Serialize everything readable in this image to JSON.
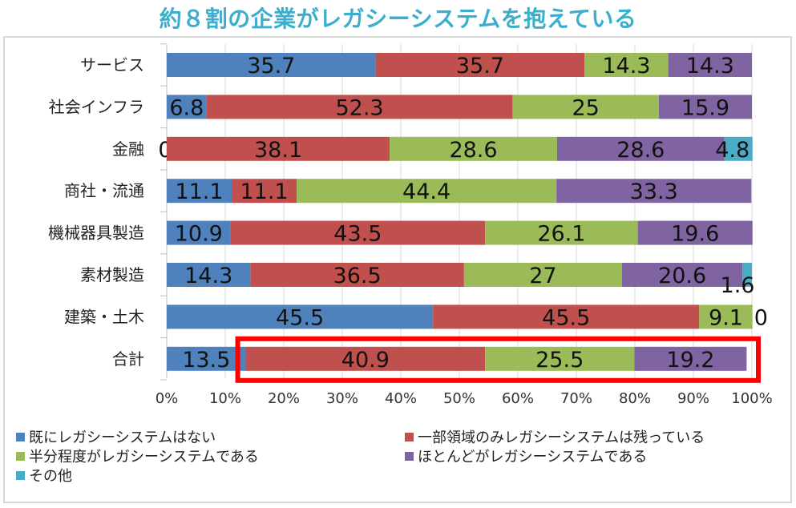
{
  "chart_data": {
    "type": "bar",
    "orientation": "horizontal-stacked-100",
    "title": "約８割の企業がレガシーシステムを抱えている",
    "categories": [
      "サービス",
      "社会インフラ",
      "金融",
      "商社・流通",
      "機械器具製造",
      "素材製造",
      "建築・土木",
      "合計"
    ],
    "series": [
      {
        "name": "既にレガシーシステムはない",
        "color": "#4f81bd",
        "values": [
          35.7,
          6.8,
          0,
          11.1,
          10.9,
          14.3,
          45.5,
          13.5
        ]
      },
      {
        "name": "一部領域のみレガシーシステムは残っている",
        "color": "#c0504d",
        "values": [
          35.7,
          52.3,
          38.1,
          11.1,
          43.5,
          36.5,
          45.5,
          40.9
        ]
      },
      {
        "name": "半分程度がレガシーシステムである",
        "color": "#9bbb59",
        "values": [
          14.3,
          25,
          28.6,
          44.4,
          26.1,
          27,
          9.1,
          25.5
        ]
      },
      {
        "name": "ほとんどがレガシーシステムである",
        "color": "#8064a2",
        "values": [
          14.3,
          15.9,
          28.6,
          33.3,
          19.6,
          20.6,
          0,
          19.2
        ]
      },
      {
        "name": "その他",
        "color": "#4bacc6",
        "values": [
          0,
          0,
          4.8,
          0,
          0,
          1.6,
          0,
          0
        ]
      }
    ],
    "xlim": [
      0,
      100
    ],
    "xticks": [
      "0%",
      "10%",
      "20%",
      "30%",
      "40%",
      "50%",
      "60%",
      "70%",
      "80%",
      "90%",
      "100%"
    ],
    "grid": true,
    "legend_position": "bottom",
    "highlight": {
      "category": "合計",
      "from_series": 1,
      "color": "#ff0000"
    }
  }
}
